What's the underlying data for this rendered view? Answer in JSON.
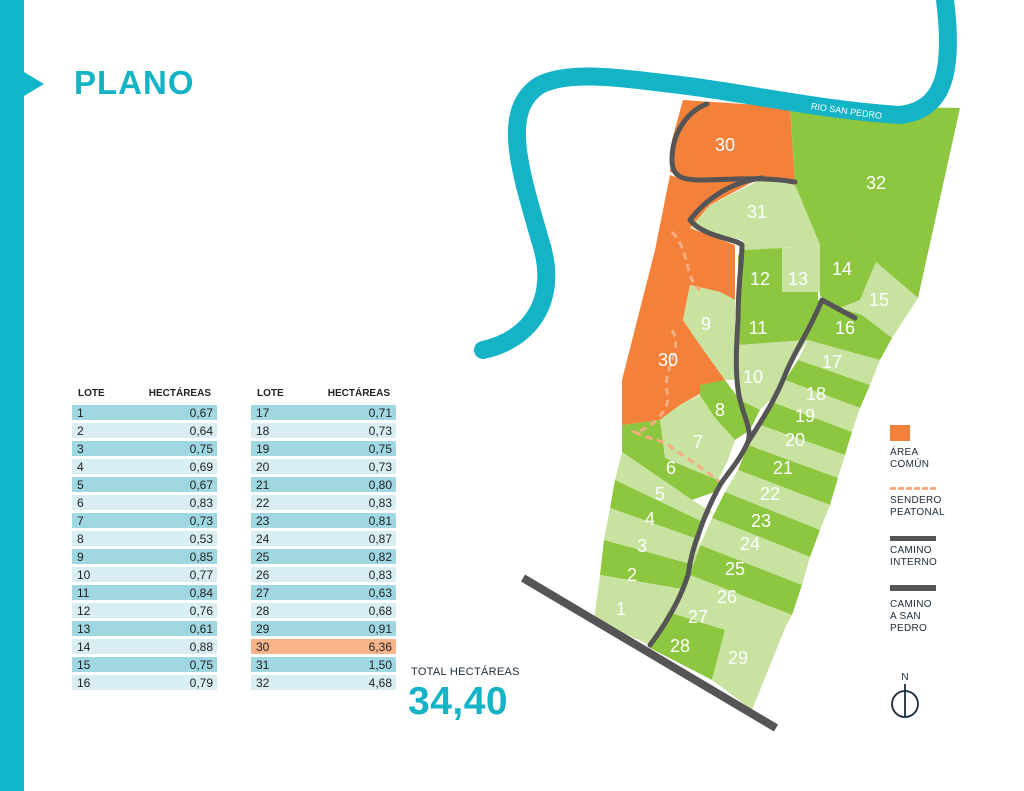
{
  "title": "PLANO",
  "table1": {
    "header_lote": "LOTE",
    "header_ha": "HECTÁREAS",
    "rows": [
      {
        "lote": "1",
        "ha": "0,67"
      },
      {
        "lote": "2",
        "ha": "0,64"
      },
      {
        "lote": "3",
        "ha": "0,75"
      },
      {
        "lote": "4",
        "ha": "0,69"
      },
      {
        "lote": "5",
        "ha": "0,67"
      },
      {
        "lote": "6",
        "ha": "0,83"
      },
      {
        "lote": "7",
        "ha": "0,73"
      },
      {
        "lote": "8",
        "ha": "0,53"
      },
      {
        "lote": "9",
        "ha": "0,85"
      },
      {
        "lote": "10",
        "ha": "0,77"
      },
      {
        "lote": "11",
        "ha": "0,84"
      },
      {
        "lote": "12",
        "ha": "0,76"
      },
      {
        "lote": "13",
        "ha": "0,61"
      },
      {
        "lote": "14",
        "ha": "0,88"
      },
      {
        "lote": "15",
        "ha": "0,75"
      },
      {
        "lote": "16",
        "ha": "0,79"
      }
    ]
  },
  "table2": {
    "header_lote": "LOTE",
    "header_ha": "HECTÁREAS",
    "rows": [
      {
        "lote": "17",
        "ha": "0,71"
      },
      {
        "lote": "18",
        "ha": "0,73"
      },
      {
        "lote": "19",
        "ha": "0,75"
      },
      {
        "lote": "20",
        "ha": "0,73"
      },
      {
        "lote": "21",
        "ha": "0,80"
      },
      {
        "lote": "22",
        "ha": "0,83"
      },
      {
        "lote": "23",
        "ha": "0,81"
      },
      {
        "lote": "24",
        "ha": "0,87"
      },
      {
        "lote": "25",
        "ha": "0,82"
      },
      {
        "lote": "26",
        "ha": "0,83"
      },
      {
        "lote": "27",
        "ha": "0,63"
      },
      {
        "lote": "28",
        "ha": "0,68"
      },
      {
        "lote": "29",
        "ha": "0,91"
      },
      {
        "lote": "30",
        "ha": "6,36"
      },
      {
        "lote": "31",
        "ha": "1,50"
      },
      {
        "lote": "32",
        "ha": "4,68"
      }
    ]
  },
  "total": {
    "label": "TOTAL HECTÁREAS",
    "value": "34,40"
  },
  "map": {
    "river_label": "RIO SAN PEDRO",
    "lots": [
      "1",
      "2",
      "3",
      "4",
      "5",
      "6",
      "7",
      "8",
      "9",
      "10",
      "11",
      "12",
      "13",
      "14",
      "15",
      "16",
      "17",
      "18",
      "19",
      "20",
      "21",
      "22",
      "23",
      "24",
      "25",
      "26",
      "27",
      "28",
      "29",
      "30",
      "31",
      "32"
    ],
    "colors": {
      "river": "#14b3c6",
      "common_area": "#f4813a",
      "lot_dark": "#8dc63f",
      "lot_light": "#c8e2a0",
      "road": "#555555",
      "path": "#f6ad82"
    }
  },
  "legend": {
    "common_area": [
      "ÁREA",
      "COMÚN"
    ],
    "footpath": [
      "SENDERO",
      "PEATONAL"
    ],
    "internal_road": [
      "CAMINO",
      "INTERNO"
    ],
    "road_to_san_pedro": [
      "CAMINO",
      "A SAN",
      "PEDRO"
    ],
    "north": "N"
  }
}
